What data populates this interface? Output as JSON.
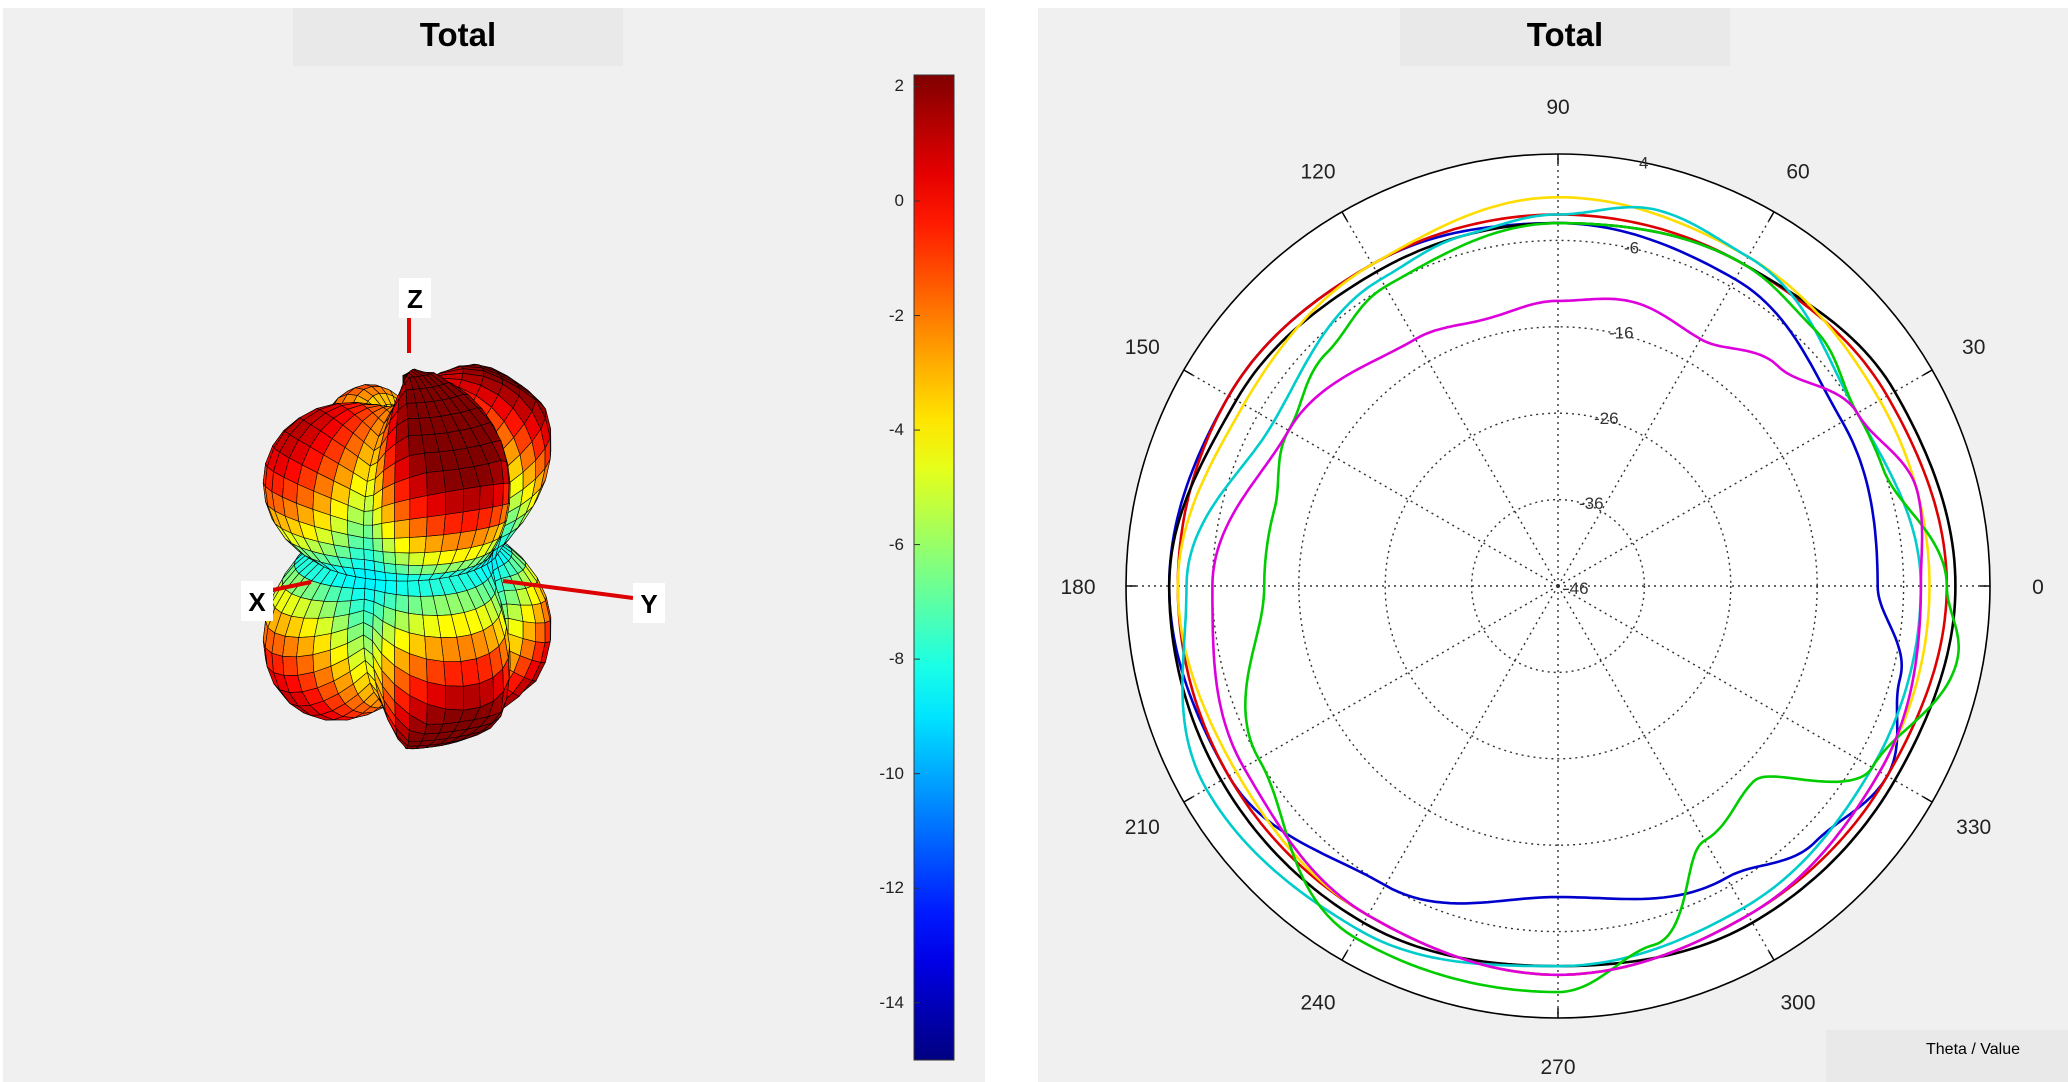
{
  "left": {
    "title": "Total",
    "axes": {
      "x": "X",
      "y": "Y",
      "z": "Z"
    },
    "colorbar": {
      "ticks": [
        "2",
        "0",
        "-2",
        "-4",
        "-6",
        "-8",
        "-10",
        "-12",
        "-14"
      ],
      "range": [
        -15,
        2.2
      ],
      "colormap": "jet"
    }
  },
  "right": {
    "title": "Total",
    "footnote": "Theta / Value"
  },
  "chart_data": [
    {
      "type": "surface",
      "title": "Total",
      "axis_labels": [
        "X",
        "Y",
        "Z"
      ],
      "colorbar_ticks": [
        2,
        0,
        -2,
        -4,
        -6,
        -8,
        -10,
        -12,
        -14
      ],
      "colorbar_range": [
        -15,
        2.2
      ]
    },
    {
      "type": "polar",
      "title": "Total",
      "angle_ticks": [
        0,
        30,
        60,
        90,
        120,
        150,
        180,
        210,
        240,
        270,
        300,
        330
      ],
      "radial_ticks": [
        4,
        -6,
        -16,
        -26,
        -36,
        -46
      ],
      "radial_range": [
        -46,
        4
      ],
      "grid": true,
      "series": [
        {
          "color": "#0000cc",
          "theta": [
            0,
            30,
            60,
            90,
            120,
            150,
            180,
            210,
            240,
            270,
            300,
            315,
            330,
            345,
            360
          ],
          "r": [
            -9,
            -8,
            -5,
            -4,
            -3,
            -2,
            -1,
            -2,
            -6,
            -10,
            -7,
            -4,
            -2,
            -5,
            -9
          ]
        },
        {
          "color": "#dd0000",
          "theta": [
            0,
            30,
            60,
            90,
            120,
            150,
            180,
            210,
            240,
            270,
            300,
            330,
            360
          ],
          "r": [
            -1,
            -2,
            -3,
            -3,
            -3,
            -2,
            -2,
            -2,
            -2,
            -1,
            -2,
            -2,
            -1
          ]
        },
        {
          "color": "#000000",
          "theta": [
            0,
            30,
            60,
            90,
            120,
            150,
            180,
            210,
            240,
            270,
            300,
            330,
            360
          ],
          "r": [
            0,
            -1,
            -3,
            -4,
            -4,
            -3,
            -1,
            -1,
            -1,
            -2,
            -1,
            -1,
            0
          ]
        },
        {
          "color": "#ffdd00",
          "theta": [
            0,
            30,
            60,
            90,
            120,
            150,
            180,
            210,
            240,
            270,
            300,
            330,
            360
          ],
          "r": [
            -3,
            -3,
            -2,
            -1,
            -3,
            -4,
            -2,
            -3,
            -2,
            -1,
            -2,
            -3,
            -3
          ]
        },
        {
          "color": "#00cccc",
          "theta": [
            0,
            30,
            60,
            75,
            90,
            105,
            120,
            150,
            180,
            210,
            240,
            270,
            300,
            330,
            360
          ],
          "r": [
            -4,
            -6,
            -2,
            -1,
            -3,
            -4,
            -5,
            -8,
            -3,
            1,
            0,
            -2,
            -3,
            -4,
            -4
          ]
        },
        {
          "color": "#00cc00",
          "theta": [
            0,
            20,
            30,
            45,
            60,
            90,
            120,
            135,
            150,
            165,
            180,
            210,
            240,
            270,
            285,
            300,
            315,
            330,
            350,
            360
          ],
          "r": [
            -1,
            -6,
            -6,
            -4,
            -3,
            -4,
            -6,
            -8,
            -10,
            -12,
            -12,
            -6,
            1,
            1,
            -3,
            -12,
            -14,
            -4,
            1,
            -1
          ]
        },
        {
          "color": "#dd00dd",
          "theta": [
            0,
            15,
            30,
            45,
            60,
            75,
            90,
            105,
            120,
            150,
            180,
            210,
            240,
            270,
            300,
            330,
            360
          ],
          "r": [
            -4,
            -3,
            -6,
            -10,
            -13,
            -12,
            -13,
            -14,
            -13,
            -10,
            -6,
            -4,
            -2,
            -1,
            -2,
            -3,
            -4
          ]
        }
      ]
    }
  ]
}
